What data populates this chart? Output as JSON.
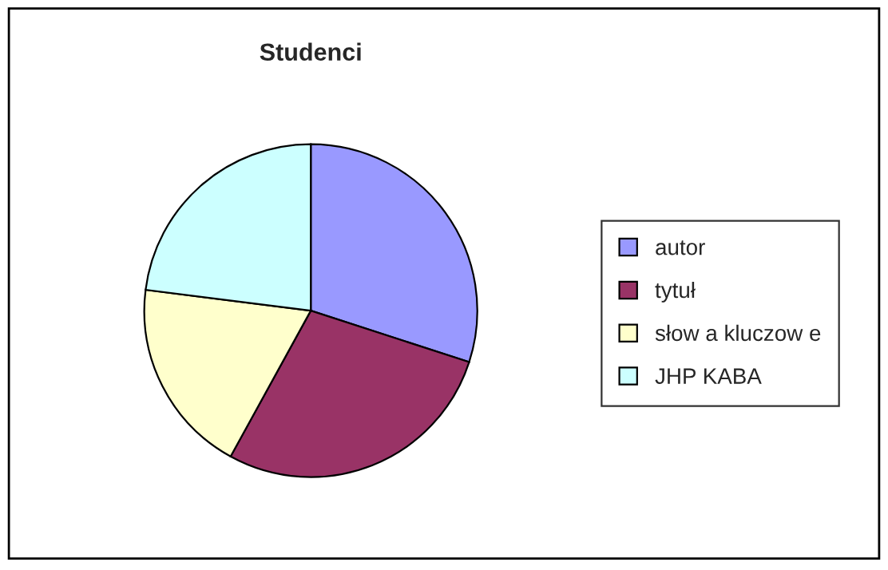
{
  "chart_data": {
    "type": "pie",
    "title": "Studenci",
    "categories": [
      "autor",
      "tytuł",
      "słow a kluczow e",
      "JHP KABA"
    ],
    "values": [
      30,
      28,
      19,
      23
    ],
    "colors": [
      "#9999ff",
      "#993366",
      "#ffffcc",
      "#ccffff"
    ],
    "legend": "right"
  }
}
